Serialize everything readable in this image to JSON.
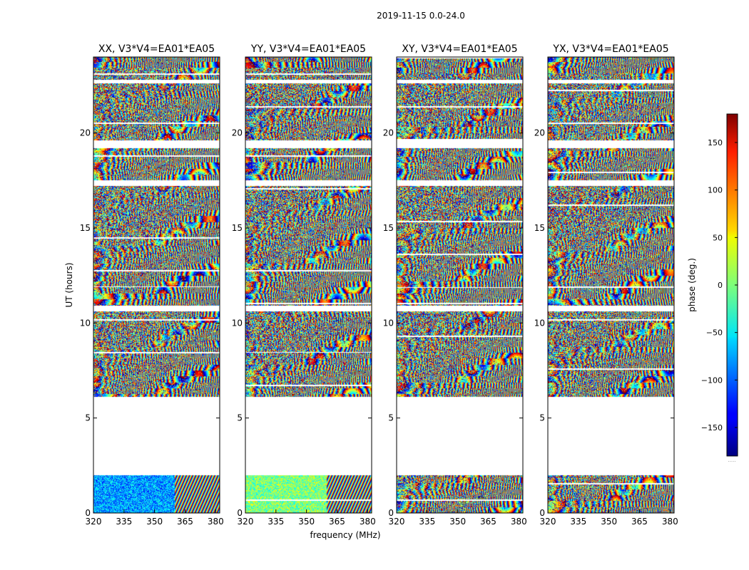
{
  "figure": {
    "suptitle": "2019-11-15 0.0-24.0",
    "xlabel": "frequency (MHz)",
    "ylabel": "UT (hours)"
  },
  "chart_data": {
    "type": "heatmap",
    "colormap": "jet",
    "panels": [
      {
        "title": "XX, V3*V4=EA01*EA05",
        "pol": "XX"
      },
      {
        "title": "YY, V3*V4=EA01*EA05",
        "pol": "YY"
      },
      {
        "title": "XY, V3*V4=EA01*EA05",
        "pol": "XY"
      },
      {
        "title": "YX, V3*V4=EA01*EA05",
        "pol": "YX"
      }
    ],
    "x": {
      "range": [
        320,
        382
      ],
      "ticks": [
        320,
        335,
        350,
        365,
        380
      ],
      "tick_labels": [
        "320",
        "335",
        "350",
        "365",
        "380"
      ]
    },
    "y": {
      "range": [
        0,
        24
      ],
      "ticks": [
        0,
        5,
        10,
        15,
        20
      ],
      "tick_labels": [
        "0",
        "5",
        "10",
        "15",
        "20"
      ]
    },
    "data_coverage_ut": [
      [
        0.0,
        2.0
      ],
      [
        6.1,
        24.0
      ]
    ],
    "gaps_ut": [
      [
        2.0,
        6.1
      ],
      [
        10.6,
        10.9
      ],
      [
        17.2,
        17.5
      ],
      [
        19.2,
        19.6
      ],
      [
        22.6,
        22.8
      ]
    ],
    "colorbar": {
      "label": "phase (deg.)",
      "range": [
        -180,
        180
      ],
      "ticks": [
        150,
        100,
        50,
        0,
        -50,
        -100,
        -150
      ],
      "tick_labels": [
        "150",
        "100",
        "50",
        "0",
        "−50",
        "−100",
        "−150"
      ],
      "footer": "....."
    }
  }
}
